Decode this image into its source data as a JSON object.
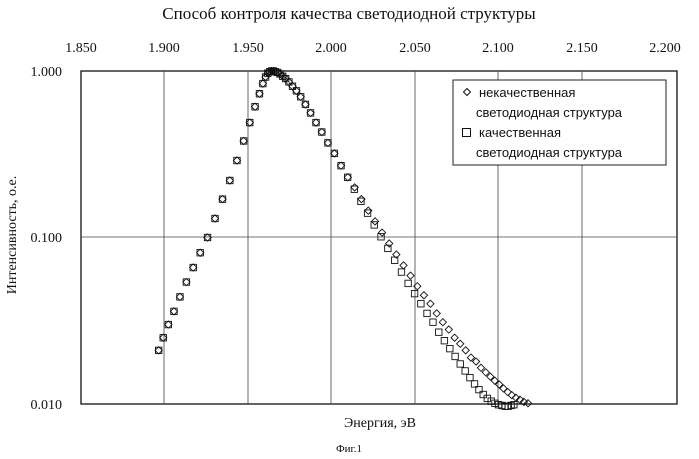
{
  "chart_data": {
    "type": "scatter",
    "title": "Способ контроля качества светодиодной структуры",
    "xlabel": "Энергия, эВ",
    "ylabel": "Интенсивность, о.е.",
    "xlim": [
      1.85,
      2.2
    ],
    "ylim": [
      0.01,
      1.0
    ],
    "y_scale": "log",
    "x_axis_position": "top",
    "x_ticks": [
      "1.850",
      "1.900",
      "1.950",
      "2.000",
      "2.050",
      "2.100",
      "2.150",
      "2.200"
    ],
    "y_ticks": [
      "1.000",
      "0.100",
      "0.010"
    ],
    "grid": true,
    "legend_position": "top-right",
    "series": [
      {
        "name": "некачественная светодиодная структура",
        "marker": "diamond",
        "x": [
          1.8956,
          1.8983,
          1.9013,
          1.9046,
          1.9081,
          1.9119,
          1.9159,
          1.92,
          1.9243,
          1.9287,
          1.9331,
          1.9374,
          1.9416,
          1.9455,
          1.9491,
          1.9522,
          1.9548,
          1.9568,
          1.9584,
          1.9597,
          1.9608,
          1.9619,
          1.963,
          1.9642,
          1.9655,
          1.9669,
          1.9685,
          1.9702,
          1.9721,
          1.9742,
          1.9765,
          1.979,
          1.9818,
          1.9848,
          1.988,
          1.9914,
          1.995,
          1.9988,
          2.0027,
          2.0067,
          2.0107,
          2.0147,
          2.0187,
          2.0227,
          2.0268,
          2.031,
          2.0352,
          2.0394,
          2.0435,
          2.0475,
          2.0514,
          2.0552,
          2.0589,
          2.0625,
          2.066,
          2.0694,
          2.0727,
          2.0759,
          2.079,
          2.082,
          2.0849,
          2.0877,
          2.0904,
          2.093,
          2.0956,
          2.0981,
          2.1006,
          2.103,
          2.1054,
          2.1078,
          2.1101,
          2.1125
        ],
        "y": [
          0.021,
          0.025,
          0.03,
          0.036,
          0.044,
          0.054,
          0.066,
          0.081,
          0.1,
          0.13,
          0.17,
          0.22,
          0.29,
          0.38,
          0.49,
          0.61,
          0.73,
          0.84,
          0.92,
          0.97,
          0.99,
          1.0,
          1.0,
          0.99,
          0.98,
          0.96,
          0.93,
          0.9,
          0.86,
          0.81,
          0.76,
          0.7,
          0.63,
          0.56,
          0.49,
          0.43,
          0.37,
          0.32,
          0.27,
          0.23,
          0.2,
          0.17,
          0.145,
          0.125,
          0.107,
          0.092,
          0.079,
          0.068,
          0.059,
          0.051,
          0.045,
          0.04,
          0.035,
          0.031,
          0.028,
          0.025,
          0.023,
          0.021,
          0.019,
          0.018,
          0.0165,
          0.0155,
          0.0146,
          0.0138,
          0.0131,
          0.0124,
          0.0118,
          0.0113,
          0.0109,
          0.0106,
          0.0103,
          0.0101
        ]
      },
      {
        "name": "качественная светодиодная структура",
        "marker": "square",
        "x": [
          1.8956,
          1.8983,
          1.9013,
          1.9046,
          1.9081,
          1.9119,
          1.9159,
          1.92,
          1.9243,
          1.9287,
          1.9331,
          1.9374,
          1.9416,
          1.9455,
          1.9491,
          1.9522,
          1.9548,
          1.9568,
          1.9584,
          1.9597,
          1.9608,
          1.9619,
          1.963,
          1.9642,
          1.9655,
          1.9669,
          1.9685,
          1.9702,
          1.9721,
          1.9742,
          1.9765,
          1.979,
          1.9818,
          1.9848,
          1.988,
          1.9914,
          1.995,
          1.9988,
          2.0027,
          2.0066,
          2.0105,
          2.0144,
          2.0183,
          2.0222,
          2.0262,
          2.0302,
          2.0342,
          2.0382,
          2.0421,
          2.0459,
          2.0496,
          2.0532,
          2.0567,
          2.0601,
          2.0634,
          2.0666,
          2.0697,
          2.0727,
          2.0756,
          2.0784,
          2.0811,
          2.0837,
          2.0862,
          2.0886,
          2.0909,
          2.0931,
          2.0952,
          2.0972,
          2.0991,
          2.1009,
          2.1026,
          2.1042
        ],
        "y": [
          0.021,
          0.025,
          0.03,
          0.036,
          0.044,
          0.054,
          0.066,
          0.081,
          0.1,
          0.13,
          0.17,
          0.22,
          0.29,
          0.38,
          0.49,
          0.61,
          0.73,
          0.84,
          0.92,
          0.97,
          0.99,
          1.0,
          1.0,
          0.99,
          0.98,
          0.96,
          0.93,
          0.9,
          0.86,
          0.81,
          0.76,
          0.7,
          0.63,
          0.56,
          0.49,
          0.43,
          0.37,
          0.32,
          0.27,
          0.23,
          0.195,
          0.165,
          0.14,
          0.119,
          0.101,
          0.086,
          0.073,
          0.062,
          0.053,
          0.046,
          0.04,
          0.035,
          0.031,
          0.027,
          0.024,
          0.0215,
          0.0193,
          0.0174,
          0.0158,
          0.0144,
          0.0132,
          0.0122,
          0.0114,
          0.0108,
          0.0104,
          0.0101,
          0.0099,
          0.0098,
          0.0097,
          0.0097,
          0.0098,
          0.0099
        ]
      }
    ]
  },
  "legend": {
    "series1_line1": "некачественная",
    "series1_line2": "светодиодная структура",
    "series2_line1": "качественная",
    "series2_line2": "светодиодная структура"
  },
  "figure_caption": "Фиг.1"
}
